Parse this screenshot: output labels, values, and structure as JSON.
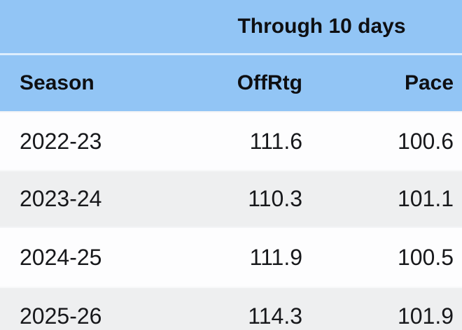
{
  "table": {
    "span_header": "Through 10 days",
    "columns": [
      "Season",
      "OffRtg",
      "Pace"
    ],
    "rows": [
      {
        "season": "2022-23",
        "offrtg": "111.6",
        "pace": "100.6"
      },
      {
        "season": "2023-24",
        "offrtg": "110.3",
        "pace": "101.1"
      },
      {
        "season": "2024-25",
        "offrtg": "111.9",
        "pace": "100.5"
      },
      {
        "season": "2025-26",
        "offrtg": "114.3",
        "pace": "101.9"
      }
    ],
    "colors": {
      "header_bg": "#92c5f5",
      "header_divider": "#ddeefd",
      "header_text": "#0e0f12",
      "row_bg": "#fdfdfe",
      "row_alt_bg": "#eeeff0",
      "text": "#17181b"
    }
  },
  "chart_data": {
    "type": "table",
    "title": "Through 10 days",
    "columns": [
      "Season",
      "OffRtg",
      "Pace"
    ],
    "rows": [
      [
        "2022-23",
        111.6,
        100.6
      ],
      [
        "2023-24",
        110.3,
        101.1
      ],
      [
        "2024-25",
        111.9,
        100.5
      ],
      [
        "2025-26",
        114.3,
        101.9
      ]
    ]
  }
}
